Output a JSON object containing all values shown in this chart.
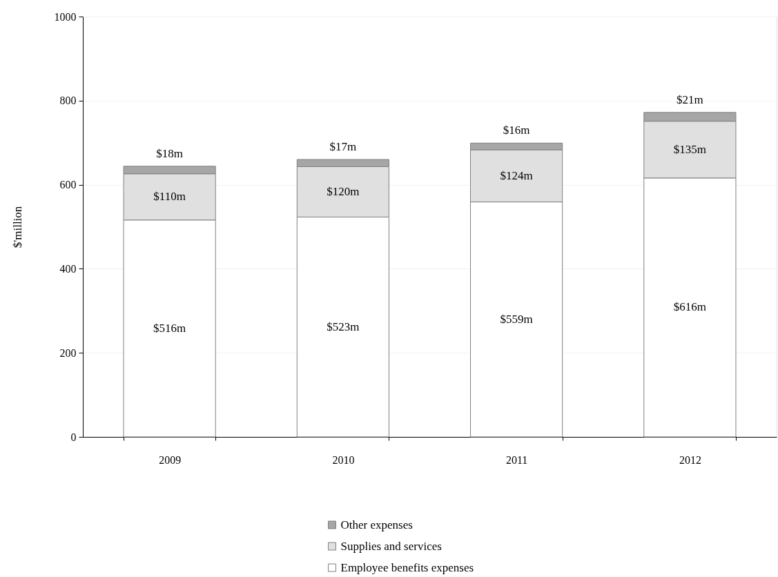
{
  "chart_data": {
    "type": "bar",
    "stacked": true,
    "ylabel": "$'million",
    "categories": [
      "2009",
      "2010",
      "2011",
      "2012"
    ],
    "series": [
      {
        "name": "Employee benefits expenses",
        "color": "#ffffff",
        "values": [
          516,
          523,
          559,
          616
        ],
        "value_labels": [
          "$516m",
          "$523m",
          "$559m",
          "$616m"
        ]
      },
      {
        "name": "Supplies and services",
        "color": "#e0e0e0",
        "values": [
          110,
          120,
          124,
          135
        ],
        "value_labels": [
          "$110m",
          "$120m",
          "$124m",
          "$135m"
        ]
      },
      {
        "name": "Other expenses",
        "color": "#a6a6a6",
        "values": [
          18,
          17,
          16,
          21
        ],
        "value_labels": [
          "$18m",
          "$17m",
          "$16m",
          "$21m"
        ]
      }
    ],
    "ylim": [
      0,
      1000
    ],
    "yticks": [
      0,
      200,
      400,
      600,
      800,
      1000
    ],
    "grid": "y",
    "legend": "bottom"
  }
}
